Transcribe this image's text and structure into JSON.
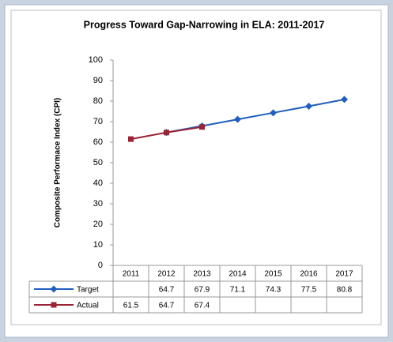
{
  "chart_data": {
    "type": "line",
    "title": "Progress Toward Gap-Narrowing in ELA: 2011-2017",
    "y_label": "Composite Performace Index (CPI)",
    "categories": [
      "2011",
      "2012",
      "2013",
      "2014",
      "2015",
      "2016",
      "2017"
    ],
    "series": [
      {
        "name": "Target",
        "color": "#1f5fbf",
        "marker": "diamond",
        "values": [
          null,
          64.7,
          67.9,
          71.1,
          74.3,
          77.5,
          80.8
        ]
      },
      {
        "name": "Actual",
        "color": "#9b2335",
        "marker": "square",
        "values": [
          61.5,
          64.7,
          67.4,
          null,
          null,
          null,
          null
        ]
      }
    ],
    "ylim": [
      0,
      100
    ],
    "yticks": [
      0,
      10,
      20,
      30,
      40,
      50,
      60,
      70,
      80,
      90,
      100
    ],
    "grid": false
  }
}
